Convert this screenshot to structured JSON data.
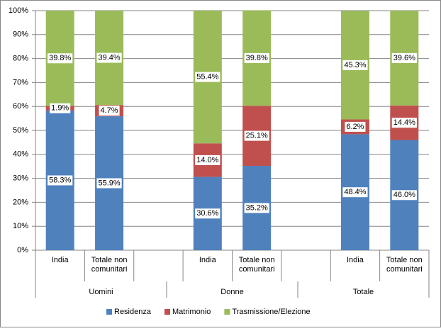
{
  "chart_data": {
    "type": "stacked_bar_100",
    "categories": [
      "India",
      "Totale non comunitari",
      null,
      "India",
      "Totale non comunitari",
      null,
      "India",
      "Totale non comunitari"
    ],
    "groups": [
      "Uomini",
      "Donne",
      "Totale"
    ],
    "series": [
      {
        "name": "Residenza",
        "color": "#4f81bd",
        "values": [
          58.3,
          55.9,
          null,
          30.6,
          35.2,
          null,
          48.4,
          46.0
        ],
        "value_labels": [
          "58.3%",
          "55.9%",
          null,
          "30.6%",
          "35.2%",
          null,
          "48.4%",
          "46.0%"
        ]
      },
      {
        "name": "Matrimonio",
        "color": "#c0504d",
        "values": [
          1.9,
          4.7,
          null,
          14.0,
          25.1,
          null,
          6.2,
          14.4
        ],
        "value_labels": [
          "1.9%",
          "4.7%",
          null,
          "14.0%",
          "25.1%",
          null,
          "6.2%",
          "14.4%"
        ]
      },
      {
        "name": "Trasmissione/Elezione",
        "color": "#9bbb59",
        "values": [
          39.8,
          39.4,
          null,
          55.4,
          39.8,
          null,
          45.3,
          39.6
        ],
        "value_labels": [
          "39.8%",
          "39.4%",
          null,
          "55.4%",
          "39.8%",
          null,
          "45.3%",
          "39.6%"
        ]
      }
    ],
    "ylim": [
      0,
      100
    ],
    "yticks": [
      {
        "value": 0,
        "label": "0%"
      },
      {
        "value": 10,
        "label": "10%"
      },
      {
        "value": 20,
        "label": "20%"
      },
      {
        "value": 30,
        "label": "30%"
      },
      {
        "value": 40,
        "label": "40%"
      },
      {
        "value": 50,
        "label": "50%"
      },
      {
        "value": 60,
        "label": "60%"
      },
      {
        "value": 70,
        "label": "70%"
      },
      {
        "value": 80,
        "label": "80%"
      },
      {
        "value": 90,
        "label": "90%"
      },
      {
        "value": 100,
        "label": "100%"
      }
    ],
    "grid": true,
    "legend": "bottom"
  }
}
